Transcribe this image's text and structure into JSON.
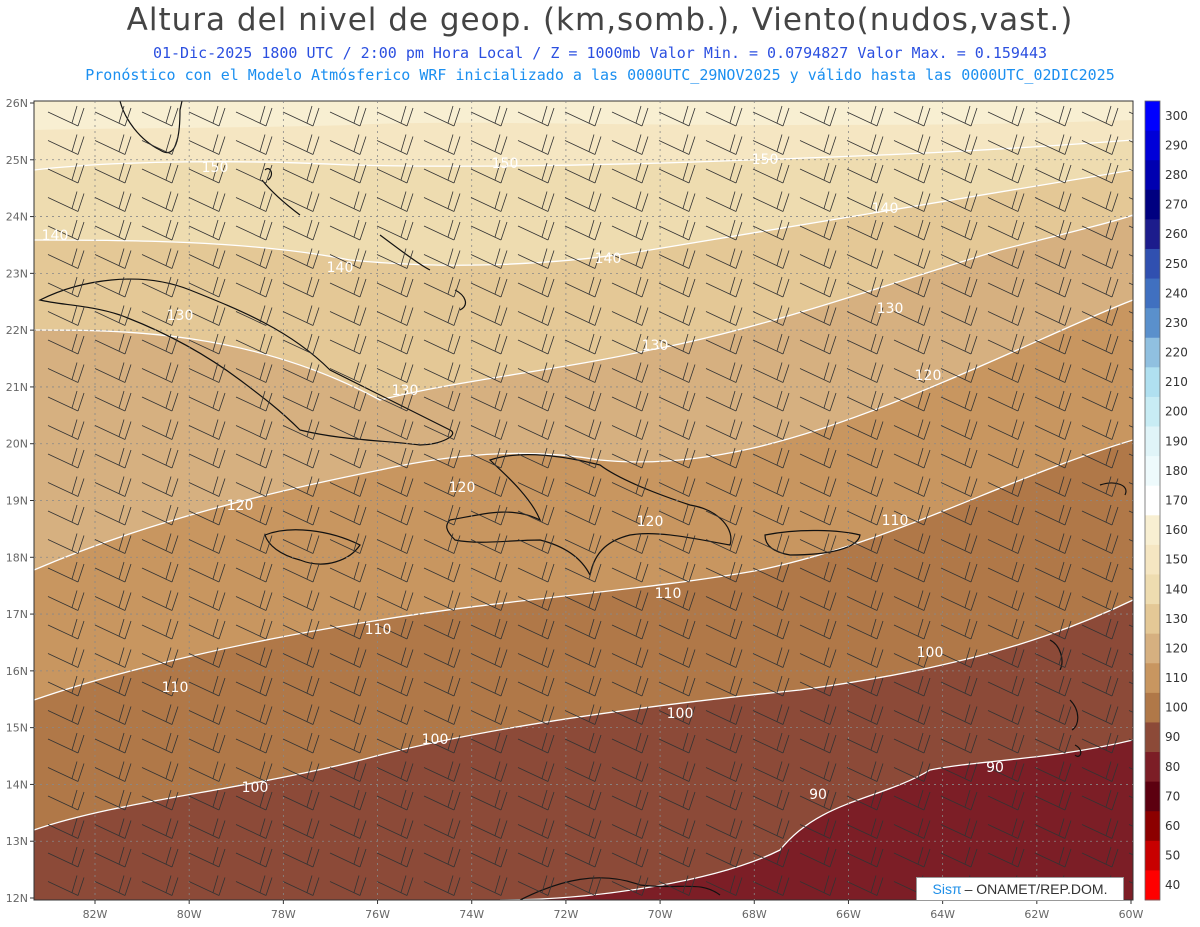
{
  "header": {
    "title": "Altura del nivel de geop. (km,somb.), Viento(nudos,vast.)",
    "subtitle_line1": "01-Dic-2025  1800 UTC / 2:00 pm Hora Local / Z = 1000mb Valor Min. = 0.0794827  Valor Max. = 0.159443",
    "subtitle_line2": "Pronóstico con el Modelo Atmósferico WRF inicializado a las 0000UTC_29NOV2025 y válido hasta las  0000UTC_02DIC2025"
  },
  "map": {
    "lat_labels": [
      "26N",
      "25N",
      "24N",
      "23N",
      "22N",
      "21N",
      "20N",
      "19N",
      "18N",
      "17N",
      "16N",
      "15N",
      "14N",
      "13N",
      "12N"
    ],
    "lon_labels": [
      "82W",
      "80W",
      "78W",
      "76W",
      "74W",
      "72W",
      "70W",
      "68W",
      "66W",
      "64W",
      "62W",
      "60W"
    ],
    "contour_labels": [
      "150",
      "150",
      "150",
      "140",
      "140",
      "140",
      "140",
      "130",
      "130",
      "130",
      "130",
      "120",
      "120",
      "120",
      "120",
      "110",
      "110",
      "110",
      "110",
      "100",
      "100",
      "100",
      "100",
      "90",
      "90"
    ]
  },
  "colorbar": {
    "labels": [
      "300",
      "290",
      "280",
      "270",
      "260",
      "250",
      "240",
      "230",
      "220",
      "210",
      "200",
      "190",
      "180",
      "170",
      "160",
      "150",
      "140",
      "130",
      "120",
      "110",
      "100",
      "90",
      "80",
      "70",
      "60",
      "50",
      "40"
    ],
    "colors": [
      "#0000ff",
      "#0000d8",
      "#0000b0",
      "#000080",
      "#1c1c8c",
      "#3050b0",
      "#4070c0",
      "#5a90cc",
      "#90c0e0",
      "#b0e0f0",
      "#c8ecf4",
      "#e0f4f8",
      "#eefafc",
      "#ffffff",
      "#f8efd2",
      "#f5e6c2",
      "#eedcb0",
      "#e4c896",
      "#d6b080",
      "#c89660",
      "#b07848",
      "#8c4a38",
      "#7c1e26",
      "#5c0010",
      "#8c0000",
      "#c80000",
      "#ff0000"
    ]
  },
  "footer": {
    "credit_brand": "Sisπ",
    "credit_text": "– ONAMET/REP.DOM."
  }
}
